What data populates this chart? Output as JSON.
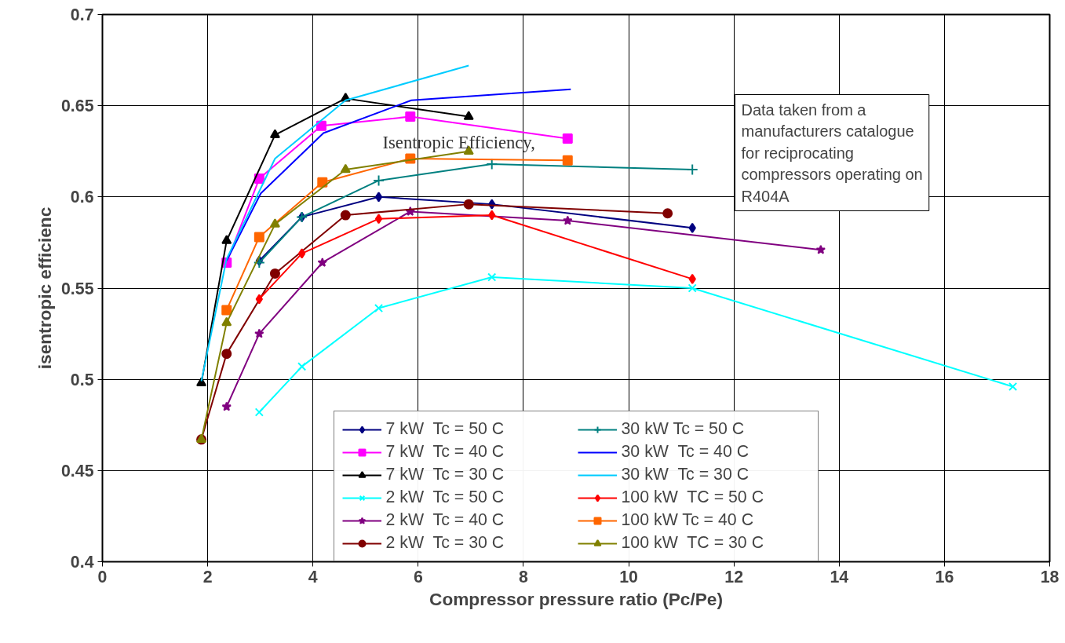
{
  "chart_data": {
    "type": "line",
    "xlabel": "Compressor pressure ratio (Pc/Pe)",
    "ylabel": "isentropic efficienc",
    "xlim": [
      0,
      18
    ],
    "xticks": [
      0,
      2,
      4,
      6,
      8,
      10,
      12,
      14,
      16,
      18
    ],
    "ylim": [
      0.4,
      0.7
    ],
    "yticks": [
      0.4,
      0.45,
      0.5,
      0.55,
      0.6,
      0.65,
      0.7
    ],
    "grid": true,
    "legend": "bottom",
    "annotations": [
      "Isentropic Efficiency,",
      "Data taken from a manufacturers catalogue for reciprocating compressors operating on R404A"
    ],
    "series": [
      {
        "name": "7 kW  Tc = 50 C",
        "color": "#000080",
        "marker": "diamond",
        "x": [
          2.98,
          3.79,
          5.25,
          7.4,
          11.21
        ],
        "values": [
          0.565,
          0.589,
          0.6,
          0.596,
          0.583
        ]
      },
      {
        "name": "7 kW  Tc = 40 C",
        "color": "#ff00ff",
        "marker": "square",
        "x": [
          2.36,
          2.98,
          4.16,
          5.85,
          8.84
        ],
        "values": [
          0.564,
          0.61,
          0.639,
          0.644,
          0.632
        ]
      },
      {
        "name": "7 kW  Tc = 30 C",
        "color": "#000000",
        "marker": "triangle",
        "x": [
          1.88,
          2.36,
          3.28,
          4.62,
          6.96
        ],
        "values": [
          0.498,
          0.576,
          0.634,
          0.654,
          0.644
        ]
      },
      {
        "name": "2 kW  Tc = 50 C",
        "color": "#00ffff",
        "marker": "x",
        "x": [
          2.98,
          3.79,
          5.25,
          7.4,
          11.21,
          17.3
        ],
        "values": [
          0.482,
          0.507,
          0.539,
          0.556,
          0.55,
          0.496
        ]
      },
      {
        "name": "2 kW  Tc = 40 C",
        "color": "#800080",
        "marker": "star",
        "x": [
          2.36,
          2.98,
          4.18,
          5.85,
          8.84,
          13.65
        ],
        "values": [
          0.485,
          0.525,
          0.564,
          0.592,
          0.587,
          0.571
        ]
      },
      {
        "name": "2 kW  Tc = 30 C",
        "color": "#800000",
        "marker": "circle",
        "x": [
          1.88,
          2.36,
          3.28,
          4.62,
          6.96,
          10.74
        ],
        "values": [
          0.467,
          0.514,
          0.558,
          0.59,
          0.596,
          0.591
        ]
      },
      {
        "name": "30 kW Tc = 50 C",
        "color": "#008080",
        "marker": "cross",
        "x": [
          2.98,
          3.79,
          5.25,
          7.4,
          11.21
        ],
        "values": [
          0.564,
          0.589,
          0.609,
          0.618,
          0.615
        ]
      },
      {
        "name": "30 kW  Tc = 40 C",
        "color": "#0000ff",
        "marker": "none",
        "x": [
          2.36,
          3.01,
          4.2,
          5.87,
          8.9
        ],
        "values": [
          0.565,
          0.602,
          0.635,
          0.653,
          0.659
        ]
      },
      {
        "name": "30 kW  Tc = 30 C",
        "color": "#00ccff",
        "marker": "none",
        "x": [
          1.88,
          2.36,
          3.28,
          4.62,
          6.96
        ],
        "values": [
          0.499,
          0.566,
          0.621,
          0.653,
          0.672
        ]
      },
      {
        "name": "100 kW  TC = 50 C",
        "color": "#ff0000",
        "marker": "diamond",
        "x": [
          2.98,
          3.79,
          5.25,
          7.4,
          11.21
        ],
        "values": [
          0.544,
          0.569,
          0.588,
          0.59,
          0.555
        ]
      },
      {
        "name": "100 kW Tc = 40 C",
        "color": "#ff6600",
        "marker": "square",
        "x": [
          2.36,
          2.98,
          4.18,
          5.85,
          8.84
        ],
        "values": [
          0.538,
          0.578,
          0.608,
          0.621,
          0.62
        ]
      },
      {
        "name": "100 kW  TC = 30 C",
        "color": "#808000",
        "marker": "triangle",
        "x": [
          1.88,
          2.36,
          3.28,
          4.62,
          6.96
        ],
        "values": [
          0.467,
          0.531,
          0.585,
          0.615,
          0.625
        ]
      }
    ]
  }
}
